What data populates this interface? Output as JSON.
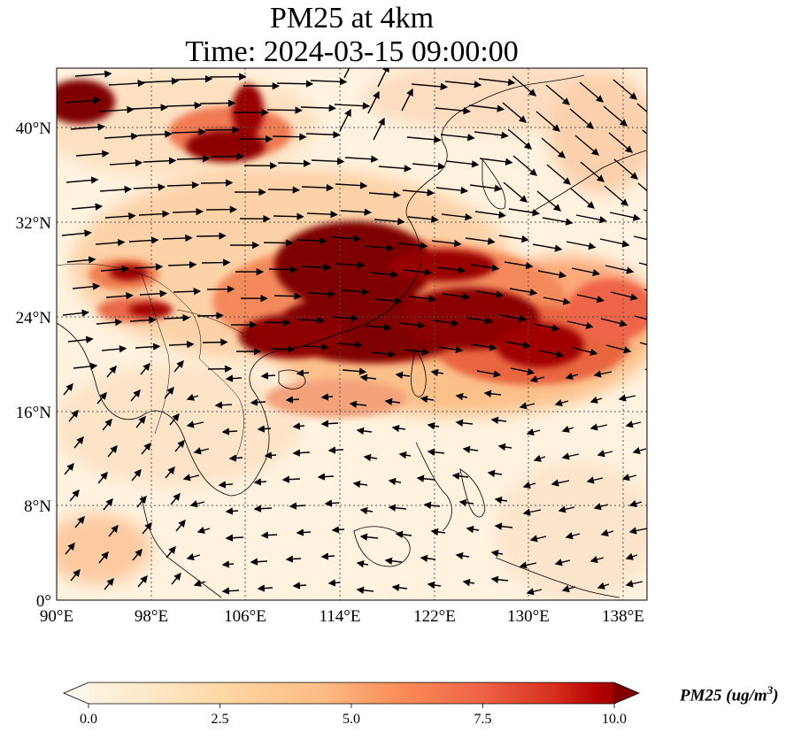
{
  "title": {
    "line1": "PM25 at 4km",
    "line2": "Time: 2024-03-15 09:00:00"
  },
  "map": {
    "projection": "PlateCarree",
    "lon_range": [
      90,
      140
    ],
    "lat_range": [
      0,
      45
    ],
    "gridlines": "dotted",
    "coastlines": true,
    "country_borders": true,
    "lon_ticks": [
      {
        "value": 90,
        "label": "90°E"
      },
      {
        "value": 98,
        "label": "98°E"
      },
      {
        "value": 106,
        "label": "106°E"
      },
      {
        "value": 114,
        "label": "114°E"
      },
      {
        "value": 122,
        "label": "122°E"
      },
      {
        "value": 130,
        "label": "130°E"
      },
      {
        "value": 138,
        "label": "138°E"
      }
    ],
    "lat_ticks": [
      {
        "value": 0,
        "label": "0°"
      },
      {
        "value": 8,
        "label": "8°N"
      },
      {
        "value": 16,
        "label": "16°N"
      },
      {
        "value": 24,
        "label": "24°N"
      },
      {
        "value": 32,
        "label": "32°N"
      },
      {
        "value": 40,
        "label": "40°N"
      }
    ],
    "wind_vectors": "black quiver arrows overlaid on the field"
  },
  "colorbar": {
    "label_main": "PM25 (ug/m",
    "label_sup": "3",
    "label_close": ")",
    "colormap": "OrRd",
    "min": 0.0,
    "max": 10.0,
    "extend": "both",
    "orientation": "horizontal",
    "ticks": [
      {
        "value": 0.0,
        "label": "0.0"
      },
      {
        "value": 2.5,
        "label": "2.5"
      },
      {
        "value": 5.0,
        "label": "5.0"
      },
      {
        "value": 7.5,
        "label": "7.5"
      },
      {
        "value": 10.0,
        "label": "10.0"
      }
    ]
  },
  "colors": {
    "low": "#fff7ec",
    "mid": "#fc8d59",
    "high": "#7f0000"
  }
}
